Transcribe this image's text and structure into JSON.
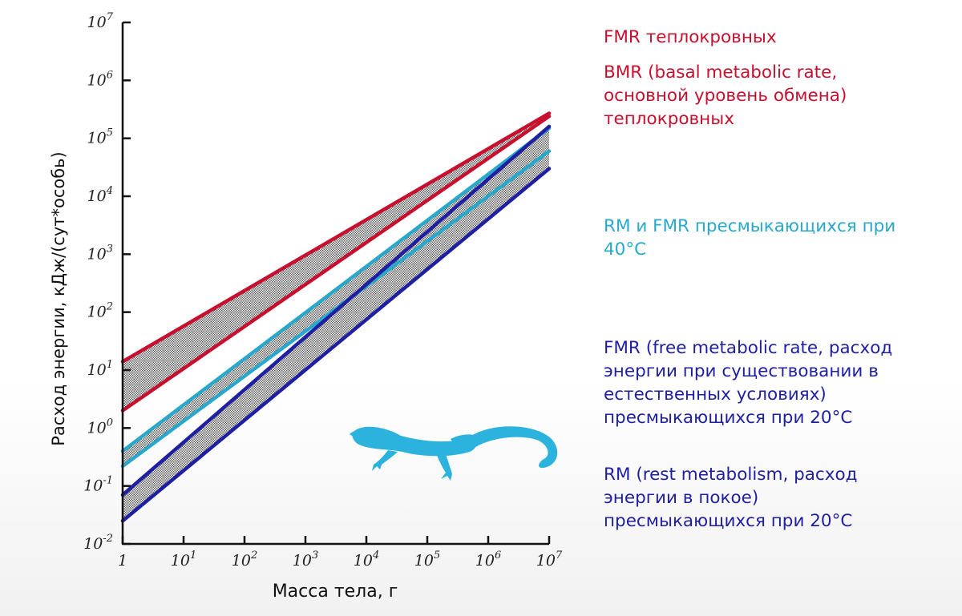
{
  "chart_data": {
    "type": "line",
    "xscale": "log",
    "yscale": "log",
    "xlabel": "Масса тела, г",
    "ylabel": "Расход энергии, кДж/(сут*особь)",
    "xlim": [
      1,
      10000000
    ],
    "ylim": [
      0.01,
      10000000
    ],
    "x_ticks": [
      {
        "base": "1",
        "exp": ""
      },
      {
        "base": "10",
        "exp": "1"
      },
      {
        "base": "10",
        "exp": "2"
      },
      {
        "base": "10",
        "exp": "3"
      },
      {
        "base": "10",
        "exp": "4"
      },
      {
        "base": "10",
        "exp": "5"
      },
      {
        "base": "10",
        "exp": "6"
      },
      {
        "base": "10",
        "exp": "7"
      }
    ],
    "y_ticks": [
      {
        "base": "10",
        "exp": "-2"
      },
      {
        "base": "10",
        "exp": "-1"
      },
      {
        "base": "10",
        "exp": "0"
      },
      {
        "base": "10",
        "exp": "1"
      },
      {
        "base": "10",
        "exp": "2"
      },
      {
        "base": "10",
        "exp": "3"
      },
      {
        "base": "10",
        "exp": "4"
      },
      {
        "base": "10",
        "exp": "5"
      },
      {
        "base": "10",
        "exp": "6"
      },
      {
        "base": "10",
        "exp": "7"
      }
    ],
    "series": [
      {
        "name": "FMR теплокровных",
        "color": "#c8102e",
        "x": [
          1,
          10000000
        ],
        "y": [
          14,
          270000
        ]
      },
      {
        "name": "BMR теплокровных",
        "color": "#c8102e",
        "x": [
          1,
          10000000
        ],
        "y": [
          2,
          240000
        ]
      },
      {
        "name": "RM и FMR пресмыкающихся при 40°C (верхняя)",
        "color": "#29a8cc",
        "x": [
          1,
          10000000
        ],
        "y": [
          0.4,
          150000
        ]
      },
      {
        "name": "RM и FMR пресмыкающихся при 40°C (нижняя)",
        "color": "#29a8cc",
        "x": [
          1,
          10000000
        ],
        "y": [
          0.22,
          60000
        ]
      },
      {
        "name": "FMR пресмыкающихся при 20°C",
        "color": "#1f1fa3",
        "x": [
          1,
          10000000
        ],
        "y": [
          0.07,
          160000
        ]
      },
      {
        "name": "RM пресмыкающихся при 20°C",
        "color": "#1f1fa3",
        "x": [
          1,
          10000000
        ],
        "y": [
          0.025,
          30000
        ]
      }
    ],
    "bands": [
      {
        "name": "теплокровные",
        "between": [
          0,
          1
        ]
      },
      {
        "name": "пресмыкающиеся при 40°C",
        "between": [
          2,
          3
        ]
      },
      {
        "name": "пресмыкающиеся при 20°C",
        "between": [
          4,
          5
        ]
      }
    ]
  },
  "legend": [
    {
      "text": "FMR теплокровных",
      "color": "#c8102e"
    },
    {
      "text": "BMR (basal metabolic rate,\nосновной уровень обмена)\nтеплокровных",
      "color": "#c8102e"
    },
    {
      "text": "RM и FMR пресмыкающихся при\n40°C",
      "color": "#29a8cc"
    },
    {
      "text": "FMR (free metabolic rate, расход\nэнергии при существовании в\nестественных условиях)\nпресмыкающихся при 20°C",
      "color": "#1f1fa3"
    },
    {
      "text": "RM (rest metabolism, расход\nэнергии в покое)\nпресмыкающихся при 20°C",
      "color": "#1f1fa3"
    }
  ],
  "illustration": {
    "icon": "lizard-icon",
    "color": "#2bb2dd"
  }
}
